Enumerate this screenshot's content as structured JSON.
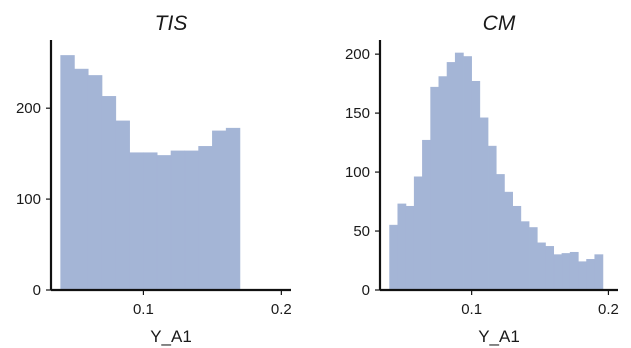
{
  "chart_data": [
    {
      "type": "bar",
      "title": "TIS",
      "xlabel": "Y_A1",
      "ylabel": "",
      "bin_start": 0.04,
      "bin_width": 0.01,
      "values": [
        258,
        243,
        236,
        213,
        186,
        151,
        151,
        148,
        153,
        153,
        158,
        175,
        178
      ],
      "xlim": [
        0.033,
        0.207
      ],
      "ylim": [
        0,
        275
      ],
      "xticks": [
        0.1,
        0.2
      ],
      "xtick_labels": [
        "0.1",
        "0.2"
      ],
      "yticks": [
        0,
        100,
        200
      ],
      "ytick_labels": [
        "0",
        "100",
        "200"
      ],
      "color": "#a4b5d6",
      "grid": false
    },
    {
      "type": "bar",
      "title": "CM",
      "xlabel": "Y_A1",
      "ylabel": "",
      "bin_start": 0.04,
      "bin_width": 0.006,
      "values": [
        55,
        73,
        71,
        96,
        127,
        172,
        181,
        193,
        201,
        198,
        177,
        146,
        122,
        98,
        83,
        71,
        58,
        53,
        40,
        37,
        30,
        31,
        32,
        24,
        26,
        30
      ],
      "xlim": [
        0.033,
        0.207
      ],
      "ylim": [
        0,
        212
      ],
      "xticks": [
        0.1,
        0.2
      ],
      "xtick_labels": [
        "0.1",
        "0.2"
      ],
      "yticks": [
        0,
        50,
        100,
        150,
        200
      ],
      "ytick_labels": [
        "0",
        "50",
        "100",
        "150",
        "200"
      ],
      "color": "#a4b5d6",
      "grid": false
    }
  ]
}
